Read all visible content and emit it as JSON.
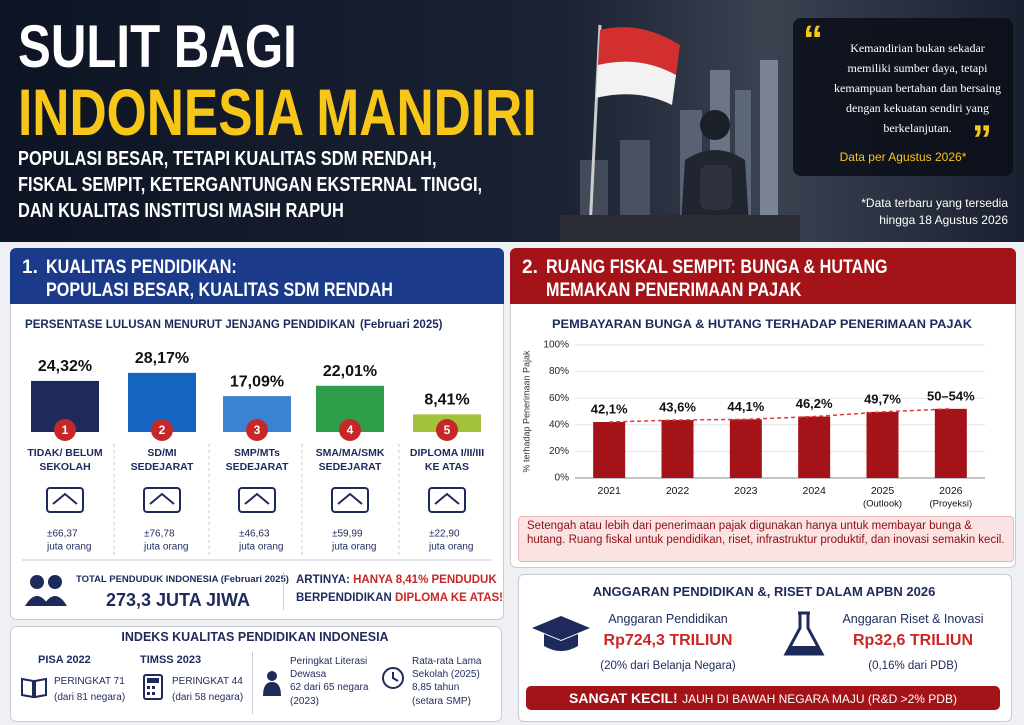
{
  "header": {
    "title_line1": "SULIT BAGI",
    "title_line2": "INDONESIA MANDIRI",
    "subtitle": [
      "POPULASI BESAR, TETAPI KUALITAS SDM RENDAH,",
      "FISKAL SEMPIT, KETERGANTUNGAN EKSTERNAL TINGGI,",
      "DAN KUALITAS INSTITUSI MASIH RAPUH"
    ],
    "quote_open": "“",
    "quote": "Kemandirian bukan sekadar memiliki sumber daya, tetapi kemampuan bertahan dan bersaing dengan kekuatan sendiri yang berkelanjutan.",
    "quote_close": "”",
    "quote_source": "Data per Agustus 2026*",
    "footnote": "*Data terbaru yang tersedia hingga 18 Agustus 2026"
  },
  "section1": {
    "number": "1.",
    "heading": [
      "KUALITAS PENDIDIKAN:",
      "POPULASI BESAR, KUALITAS SDM RENDAH"
    ],
    "total_label": "TOTAL PENDUDUK INDONESIA (Februari 2025)",
    "total_value": "273,3 JUTA JIWA",
    "meaning_label": "ARTINYA:",
    "meaning_highlight": "HANYA 8,41% PENDUDUK",
    "meaning_middle": "BERPENDIDIKAN",
    "meaning_end": "DIPLOMA KE ATAS!"
  },
  "index": {
    "title": "INDEKS KUALITAS PENDIDIKAN INDONESIA",
    "items": [
      {
        "label": "PISA 2022",
        "rank": "PERINGKAT 71",
        "detail": "(dari 81 negara)"
      },
      {
        "label": "TIMSS 2023",
        "rank": "PERINGKAT 44",
        "detail": "(dari 58 negara)"
      },
      {
        "label": "Peringkat Literasi Dewasa",
        "rank": "62 dari 65 negara",
        "detail": "(2023)"
      },
      {
        "label": "Rata-rata Lama Sekolah (2025)",
        "rank": "8,85 tahun",
        "detail": "(setara SMP)"
      }
    ]
  },
  "section2": {
    "number": "2.",
    "heading": [
      "RUANG FISKAL SEMPIT: BUNGA & HUTANG",
      "MEMAKAN PENERIMAAN PAJAK"
    ],
    "note": "Setengah atau lebih dari penerimaan pajak digunakan hanya untuk membayar bunga & hutang. Ruang fiskal untuk pendidikan, riset, infrastruktur produktif, dan inovasi semakin kecil."
  },
  "budget": {
    "title": "ANGGARAN PENDIDIKAN &, RISET DALAM APBN 2026",
    "items": [
      {
        "label": "Anggaran Pendidikan",
        "amount": "Rp724,3 TRILIUN",
        "detail": "(20% dari Belanja Negara)"
      },
      {
        "label": "Anggaran Riset & Inovasi",
        "amount": "Rp32,6 TRILIUN",
        "detail": "(0,16% dari PDB)"
      }
    ],
    "banner_strong": "SANGAT KECIL!",
    "banner_rest": "JAUH DI BAWAH NEGARA MAJU (R&D >2% PDB)"
  },
  "chart_data": [
    {
      "type": "bar",
      "title": "PERSENTASE LULUSAN MENURUT JENJANG PENDIDIKAN",
      "subtitle": "(Februari 2025)",
      "categories": [
        "TIDAK/ BELUM SEKOLAH",
        "SD/MI SEDEJARAT",
        "SMP/MTs SEDEJARAT",
        "SMA/MA/SMK SEDEJARAT",
        "DIPLOMA I/II/III KE ATAS"
      ],
      "badges": [
        "1",
        "2",
        "3",
        "4",
        "5"
      ],
      "values": [
        24.32,
        28.17,
        17.09,
        22.01,
        8.41
      ],
      "value_labels": [
        "24,32%",
        "28,17%",
        "17,09%",
        "22,01%",
        "8,41%"
      ],
      "colors": [
        "#1f2a5c",
        "#1565c0",
        "#3b82d0",
        "#2e9e4a",
        "#a3c13b"
      ],
      "populations": [
        "±66,37",
        "±76,78",
        "±46,63",
        "±59,99",
        "±22,90"
      ],
      "population_unit": "juta orang"
    },
    {
      "type": "bar",
      "title": "PEMBAYARAN BUNGA & HUTANG TERHADAP PENERIMAAN PAJAK",
      "y_label": "% terhadap Penerimaan Pajak",
      "categories": [
        "2021",
        "2022",
        "2023",
        "2024",
        "2025",
        "2026"
      ],
      "category_notes": [
        null,
        null,
        null,
        null,
        "(Outlook)",
        "(Proyeksi)"
      ],
      "values": [
        42.1,
        43.6,
        44.1,
        46.2,
        49.7,
        52
      ],
      "value_labels": [
        "42,1%",
        "43,6%",
        "44,1%",
        "46,2%",
        "49,7%",
        "50–54%"
      ],
      "color": "#a31318",
      "trend_color": "#e53935",
      "ylim": [
        0,
        100
      ],
      "yticks": [
        {
          "value": 0,
          "label": "0%"
        },
        {
          "value": 20,
          "label": "20%"
        },
        {
          "value": 40,
          "label": "40%"
        },
        {
          "value": 60,
          "label": "60%"
        },
        {
          "value": 80,
          "label": "80%"
        },
        {
          "value": 100,
          "label": "100%"
        }
      ],
      "grid": true
    }
  ]
}
